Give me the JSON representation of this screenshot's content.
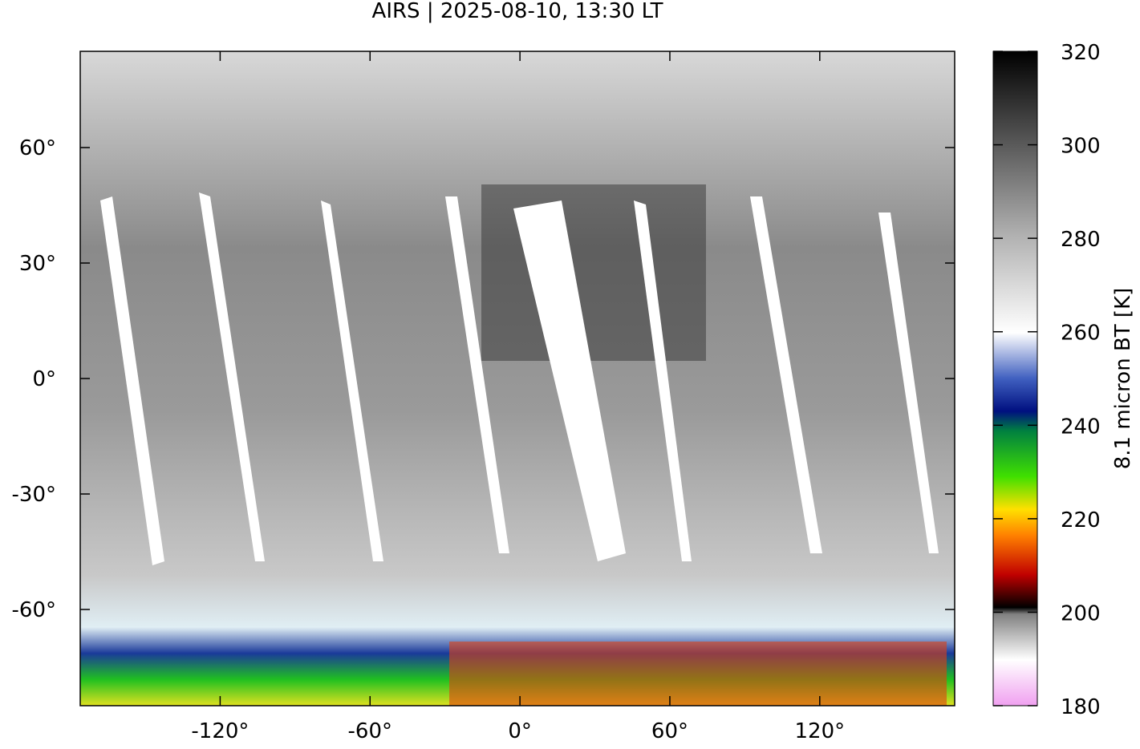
{
  "map": {
    "title": "AIRS | 2025-08-10, 13:30 LT",
    "xlim": [
      -176,
      174
    ],
    "xticks": [
      {
        "value": -120,
        "label": "-120°"
      },
      {
        "value": -60,
        "label": "-60°"
      },
      {
        "value": 0,
        "label": "0°"
      },
      {
        "value": 60,
        "label": "60°"
      },
      {
        "value": 120,
        "label": "120°"
      }
    ],
    "ylim": [
      -85,
      85
    ],
    "yticks": [
      {
        "value": 60,
        "label": "60°"
      },
      {
        "value": 30,
        "label": "30°"
      },
      {
        "value": 0,
        "label": "0°"
      },
      {
        "value": -30,
        "label": "-30°"
      },
      {
        "value": -60,
        "label": "-60°"
      }
    ],
    "colorbar": {
      "label": "8.1 micron BT [K]",
      "lim": [
        180,
        320
      ],
      "ticks": [
        180,
        200,
        220,
        240,
        260,
        280,
        300,
        320
      ]
    }
  }
}
